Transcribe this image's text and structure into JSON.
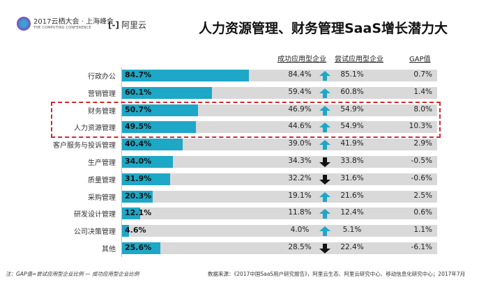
{
  "header": {
    "logo_conf_cn": "2017云栖大会 · 上海峰会",
    "logo_conf_en": "THE COMPUTING CONFERENCE",
    "logo_aliyun": "阿里云",
    "title": "人力资源管理、财务管理SaaS增长潜力大"
  },
  "chart_data": {
    "type": "table",
    "columns": [
      "成功应用型企业",
      "尝试应用型企业",
      "GAP值"
    ],
    "categories": [
      "行政办公",
      "营销管理",
      "财务管理",
      "人力资源管理",
      "客户服务与投诉管理",
      "生产管理",
      "质量管理",
      "采购管理",
      "研发设计管理",
      "公司决策管理",
      "其他"
    ],
    "bar_values": [
      "84.7%",
      "60.1%",
      "50.7%",
      "49.5%",
      "40.4%",
      "34.0%",
      "31.9%",
      "20.3%",
      "12.1%",
      "4.6%",
      "25.6%"
    ],
    "success": [
      "84.4%",
      "59.4%",
      "46.9%",
      "44.6%",
      "39.0%",
      "34.3%",
      "32.2%",
      "19.1%",
      "11.8%",
      "4.0%",
      "28.5%"
    ],
    "trial": [
      "85.1%",
      "60.8%",
      "54.9%",
      "54.9%",
      "41.9%",
      "33.8%",
      "31.6%",
      "21.6%",
      "12.4%",
      "5.1%",
      "22.4%"
    ],
    "gap": [
      "0.7%",
      "1.4%",
      "8.0%",
      "10.3%",
      "2.9%",
      "-0.5%",
      "-0.6%",
      "2.5%",
      "0.6%",
      "1.1%",
      "-6.1%"
    ],
    "arrows": [
      "up",
      "up",
      "up",
      "up",
      "up",
      "down",
      "down",
      "up",
      "up",
      "up",
      "down"
    ],
    "highlighted": [
      "财务管理",
      "人力资源管理"
    ],
    "colors": {
      "bar": "#1ea7c6",
      "track": "#d9d9d9",
      "up": "#1ea7c6",
      "down": "#111111",
      "highlight": "#d0282e"
    }
  },
  "footer": {
    "note": "注：GAP值=尝试应用型企业比例 — 成功应用型企业比例",
    "source": "数据来源：《2017中国SaaS用户研究报告》，阿里云生态、阿里云研究中心、移动信息化研究中心；2017年7月"
  }
}
